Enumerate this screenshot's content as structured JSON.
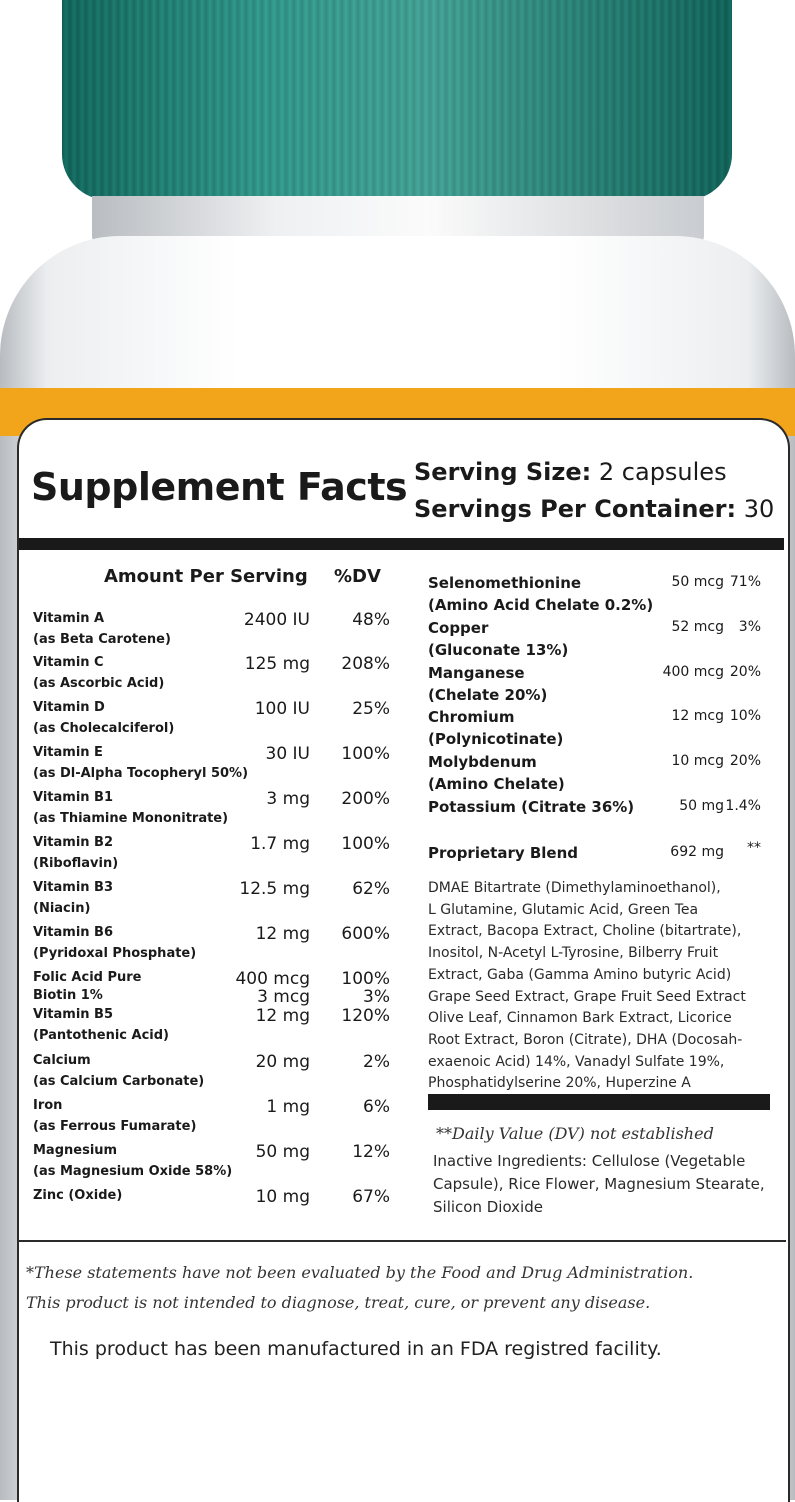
{
  "title": "Supplement Facts",
  "serving_size": {
    "label": "Serving Size:",
    "value": "2 capsules"
  },
  "servings_per_container": {
    "label": "Servings Per Container:",
    "value": "30"
  },
  "header": {
    "amount": "Amount Per Serving",
    "dv": "%DV"
  },
  "left_rows": [
    {
      "name": "Vitamin A",
      "sub": "(as Beta Carotene)",
      "amount": "2400 IU",
      "dv": "48%"
    },
    {
      "name": "Vitamin C",
      "sub": "(as Ascorbic Acid)",
      "amount": "125 mg",
      "dv": "208%"
    },
    {
      "name": "Vitamin D",
      "sub": "(as Cholecalciferol)",
      "amount": "100 IU",
      "dv": "25%"
    },
    {
      "name": "Vitamin E",
      "sub": "(as Dl-Alpha Tocopheryl 50%)",
      "amount": "30 IU",
      "dv": "100%"
    },
    {
      "name": "Vitamin B1",
      "sub": "(as Thiamine Mononitrate)",
      "amount": "3 mg",
      "dv": "200%"
    },
    {
      "name": "Vitamin B2",
      "sub": "(Riboflavin)",
      "amount": "1.7 mg",
      "dv": "100%"
    },
    {
      "name": "Vitamin B3",
      "sub": "(Niacin)",
      "amount": "12.5 mg",
      "dv": "62%"
    },
    {
      "name": "Vitamin B6",
      "sub": "(Pyridoxal Phosphate)",
      "amount": "12 mg",
      "dv": "600%"
    },
    {
      "name": "Folic Acid Pure",
      "sub": "",
      "amount": "400 mcg",
      "dv": "100%"
    },
    {
      "name": "Biotin 1%",
      "sub": "",
      "amount": "3 mcg",
      "dv": "3%"
    },
    {
      "name": "Vitamin B5",
      "sub": "(Pantothenic Acid)",
      "amount": "12 mg",
      "dv": "120%"
    },
    {
      "name": "Calcium",
      "sub": "(as Calcium Carbonate)",
      "amount": "20 mg",
      "dv": "2%"
    },
    {
      "name": "Iron",
      "sub": "(as Ferrous Fumarate)",
      "amount": "1 mg",
      "dv": "6%"
    },
    {
      "name": "Magnesium",
      "sub": "(as Magnesium Oxide 58%)",
      "amount": "50 mg",
      "dv": "12%"
    },
    {
      "name": "Zinc (Oxide)",
      "sub": "",
      "amount": "10 mg",
      "dv": "67%"
    }
  ],
  "right_rows": [
    {
      "name": "Selenomethionine",
      "sub": "(Amino Acid Chelate 0.2%)",
      "amount": "50 mcg",
      "dv": "71%"
    },
    {
      "name": "Copper",
      "sub": "(Gluconate 13%)",
      "amount": "52 mcg",
      "dv": "3%"
    },
    {
      "name": "Manganese",
      "sub": "(Chelate 20%)",
      "amount": "400 mcg",
      "dv": "20%"
    },
    {
      "name": "Chromium",
      "sub": "(Polynicotinate)",
      "amount": "12 mcg",
      "dv": "10%"
    },
    {
      "name": "Molybdenum",
      "sub": "(Amino Chelate)",
      "amount": "10 mcg",
      "dv": "20%"
    },
    {
      "name": "Potassium (Citrate 36%)",
      "sub": "",
      "amount": "50 mg",
      "dv": "1.4%"
    }
  ],
  "proprietary": {
    "name": "Proprietary Blend",
    "amount": "692 mg",
    "dv": "**"
  },
  "blend_lines": [
    "DMAE Bitartrate (Dimethylaminoethanol),",
    "L Glutamine, Glutamic Acid, Green Tea",
    "Extract, Bacopa Extract, Choline (bitartrate),",
    "Inositol, N-Acetyl L-Tyrosine, Bilberry Fruit",
    "Extract, Gaba (Gamma Amino butyric Acid)",
    "Grape Seed Extract, Grape Fruit Seed Extract",
    "Olive Leaf, Cinnamon Bark Extract, Licorice",
    "Root Extract, Boron (Citrate), DHA (Docosah-",
    "exaenoic Acid) 14%, Vanadyl Sulfate 19%,",
    "Phosphatidylserine 20%, Huperzine A"
  ],
  "dv_note": "**Daily Value (DV) not established",
  "inactive_lines": [
    "Inactive Ingredients: Cellulose (Vegetable",
    "Capsule), Rice Flower, Magnesium Stearate,",
    "Silicon Dioxide"
  ],
  "disclaimer_lines": [
    "*These statements have not been evaluated by the Food and Drug Administration.",
    "This product is not intended to diagnose, treat, cure, or prevent any disease."
  ],
  "fda_line": "This product has been manufactured in an FDA registred facility.",
  "colors": {
    "cap": "#137a6d",
    "accent_stripe": "#f2a51a",
    "text": "#1a1a1a"
  }
}
